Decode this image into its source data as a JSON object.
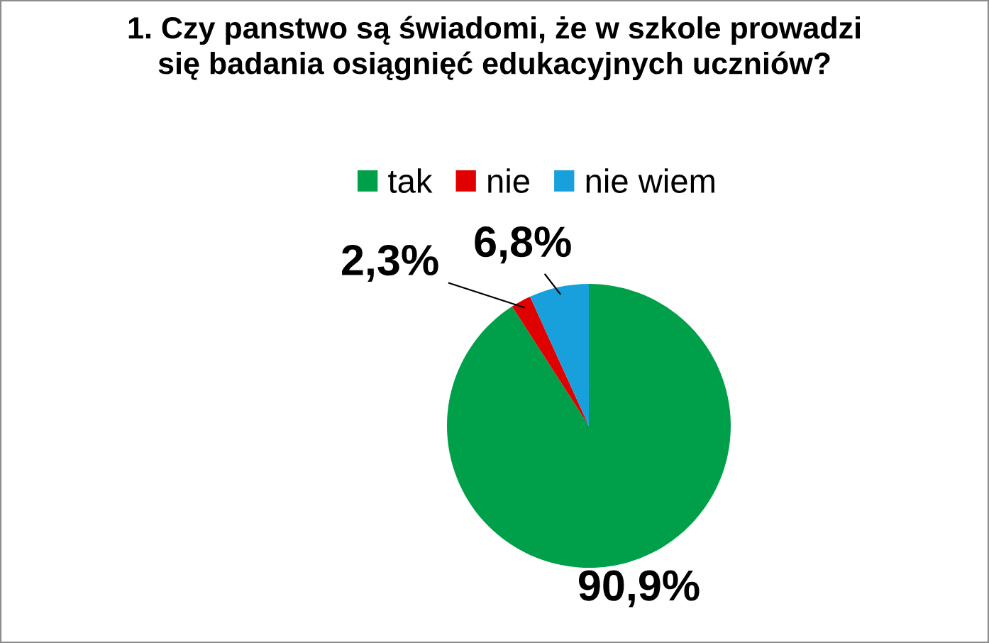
{
  "chart_data": {
    "type": "pie",
    "title": "1. Czy panstwo są świadomi, że w szkole prowadzi\nsię badania osiągnięć edukacyjnych uczniów?",
    "categories": [
      "tak",
      "nie",
      "nie wiem"
    ],
    "values": [
      90.9,
      2.3,
      6.8
    ],
    "value_labels": [
      "90,9%",
      "2,3%",
      "6,8%"
    ],
    "colors": [
      "#00a04a",
      "#e00000",
      "#18a0dc"
    ],
    "legend": "top"
  }
}
